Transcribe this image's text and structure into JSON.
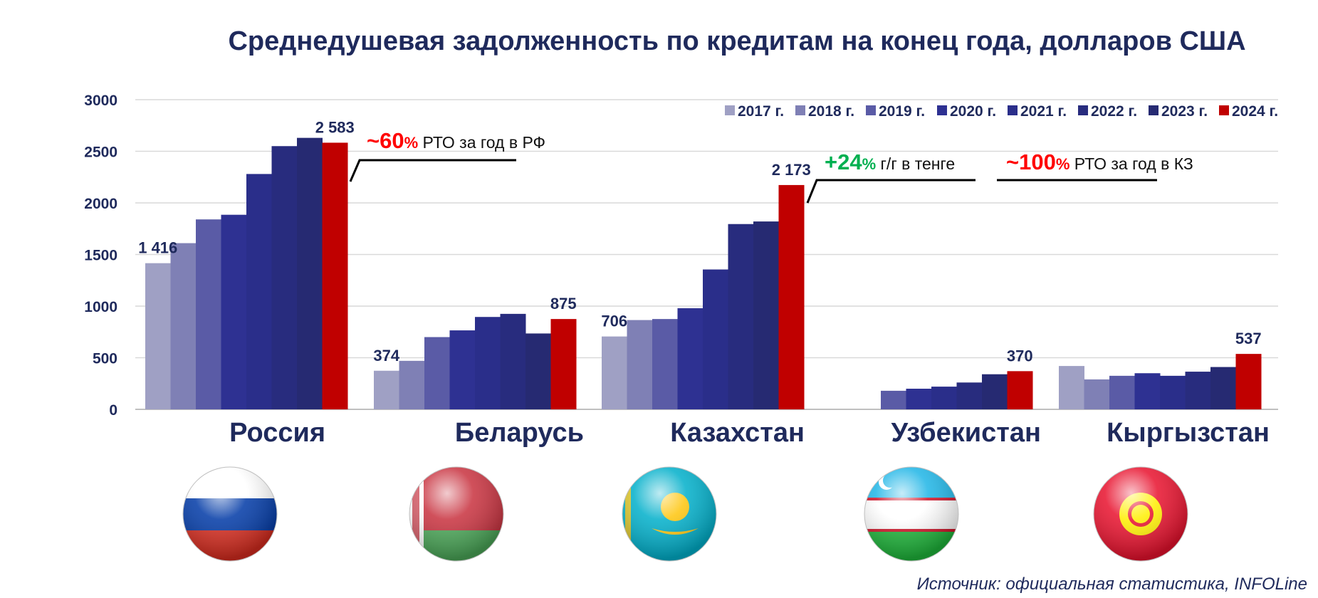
{
  "title": "Среднедушевая задолженность по кредитам на конец года, долларов США",
  "source": "Источник: официальная статистика, INFOLine",
  "colors": {
    "series": [
      "#9fa0c4",
      "#7f80b5",
      "#5a5ba6",
      "#2e3192",
      "#2a2e8a",
      "#282c7e",
      "#262a72",
      "#c00000"
    ],
    "axis_text": "#1f2a5c",
    "grid": "#d9d9d9",
    "green": "#00b050",
    "red": "#ff0000"
  },
  "chart_data": {
    "type": "bar",
    "title": "Среднедушевая задолженность по кредитам на конец года, долларов США",
    "xlabel": "",
    "ylabel": "",
    "ylim": [
      0,
      3000
    ],
    "yticks": [
      "0",
      "500",
      "1000",
      "1500",
      "2000",
      "2500",
      "3000"
    ],
    "grid": true,
    "legend_position": "top-right",
    "categories": [
      "Россия",
      "Беларусь",
      "Казахстан",
      "Узбекистан",
      "Кыргызстан"
    ],
    "series": [
      {
        "name": "2017 г.",
        "values": [
          1416,
          374,
          706,
          null,
          420
        ]
      },
      {
        "name": "2018 г.",
        "values": [
          1610,
          470,
          865,
          null,
          290
        ]
      },
      {
        "name": "2019 г.",
        "values": [
          1840,
          700,
          875,
          180,
          325
        ]
      },
      {
        "name": "2020 г.",
        "values": [
          1885,
          765,
          980,
          200,
          350
        ]
      },
      {
        "name": "2021 г.",
        "values": [
          2280,
          895,
          1355,
          220,
          325
        ]
      },
      {
        "name": "2022 г.",
        "values": [
          2550,
          925,
          1795,
          260,
          365
        ]
      },
      {
        "name": "2023 г.",
        "values": [
          2630,
          735,
          1820,
          340,
          410
        ]
      },
      {
        "name": "2024 г.",
        "values": [
          2583,
          875,
          2173,
          370,
          537
        ]
      }
    ],
    "data_labels": [
      {
        "category": "Россия",
        "series": "2017 г.",
        "text": "1 416"
      },
      {
        "category": "Россия",
        "series": "2024 г.",
        "text": "2 583"
      },
      {
        "category": "Беларусь",
        "series": "2017 г.",
        "text": "374"
      },
      {
        "category": "Беларусь",
        "series": "2024 г.",
        "text": "875"
      },
      {
        "category": "Казахстан",
        "series": "2017 г.",
        "text": "706"
      },
      {
        "category": "Казахстан",
        "series": "2024 г.",
        "text": "2 173"
      },
      {
        "category": "Узбекистан",
        "series": "2024 г.",
        "text": "370"
      },
      {
        "category": "Кыргызстан",
        "series": "2024 г.",
        "text": "537"
      }
    ],
    "annotations": [
      {
        "main": "~60",
        "pct": "%",
        "rest": " РТО за год в РФ",
        "color": "red"
      },
      {
        "main": "+24",
        "pct": "%",
        "rest": " г/г в тенге",
        "color": "green"
      },
      {
        "main": "~100",
        "pct": "%",
        "rest": " РТО за год в КЗ",
        "color": "red"
      }
    ]
  },
  "flags": [
    {
      "country": "Россия",
      "icon": "russia-flag-icon"
    },
    {
      "country": "Беларусь",
      "icon": "belarus-flag-icon"
    },
    {
      "country": "Казахстан",
      "icon": "kazakhstan-flag-icon"
    },
    {
      "country": "Узбекистан",
      "icon": "uzbekistan-flag-icon"
    },
    {
      "country": "Кыргызстан",
      "icon": "kyrgyzstan-flag-icon"
    }
  ]
}
